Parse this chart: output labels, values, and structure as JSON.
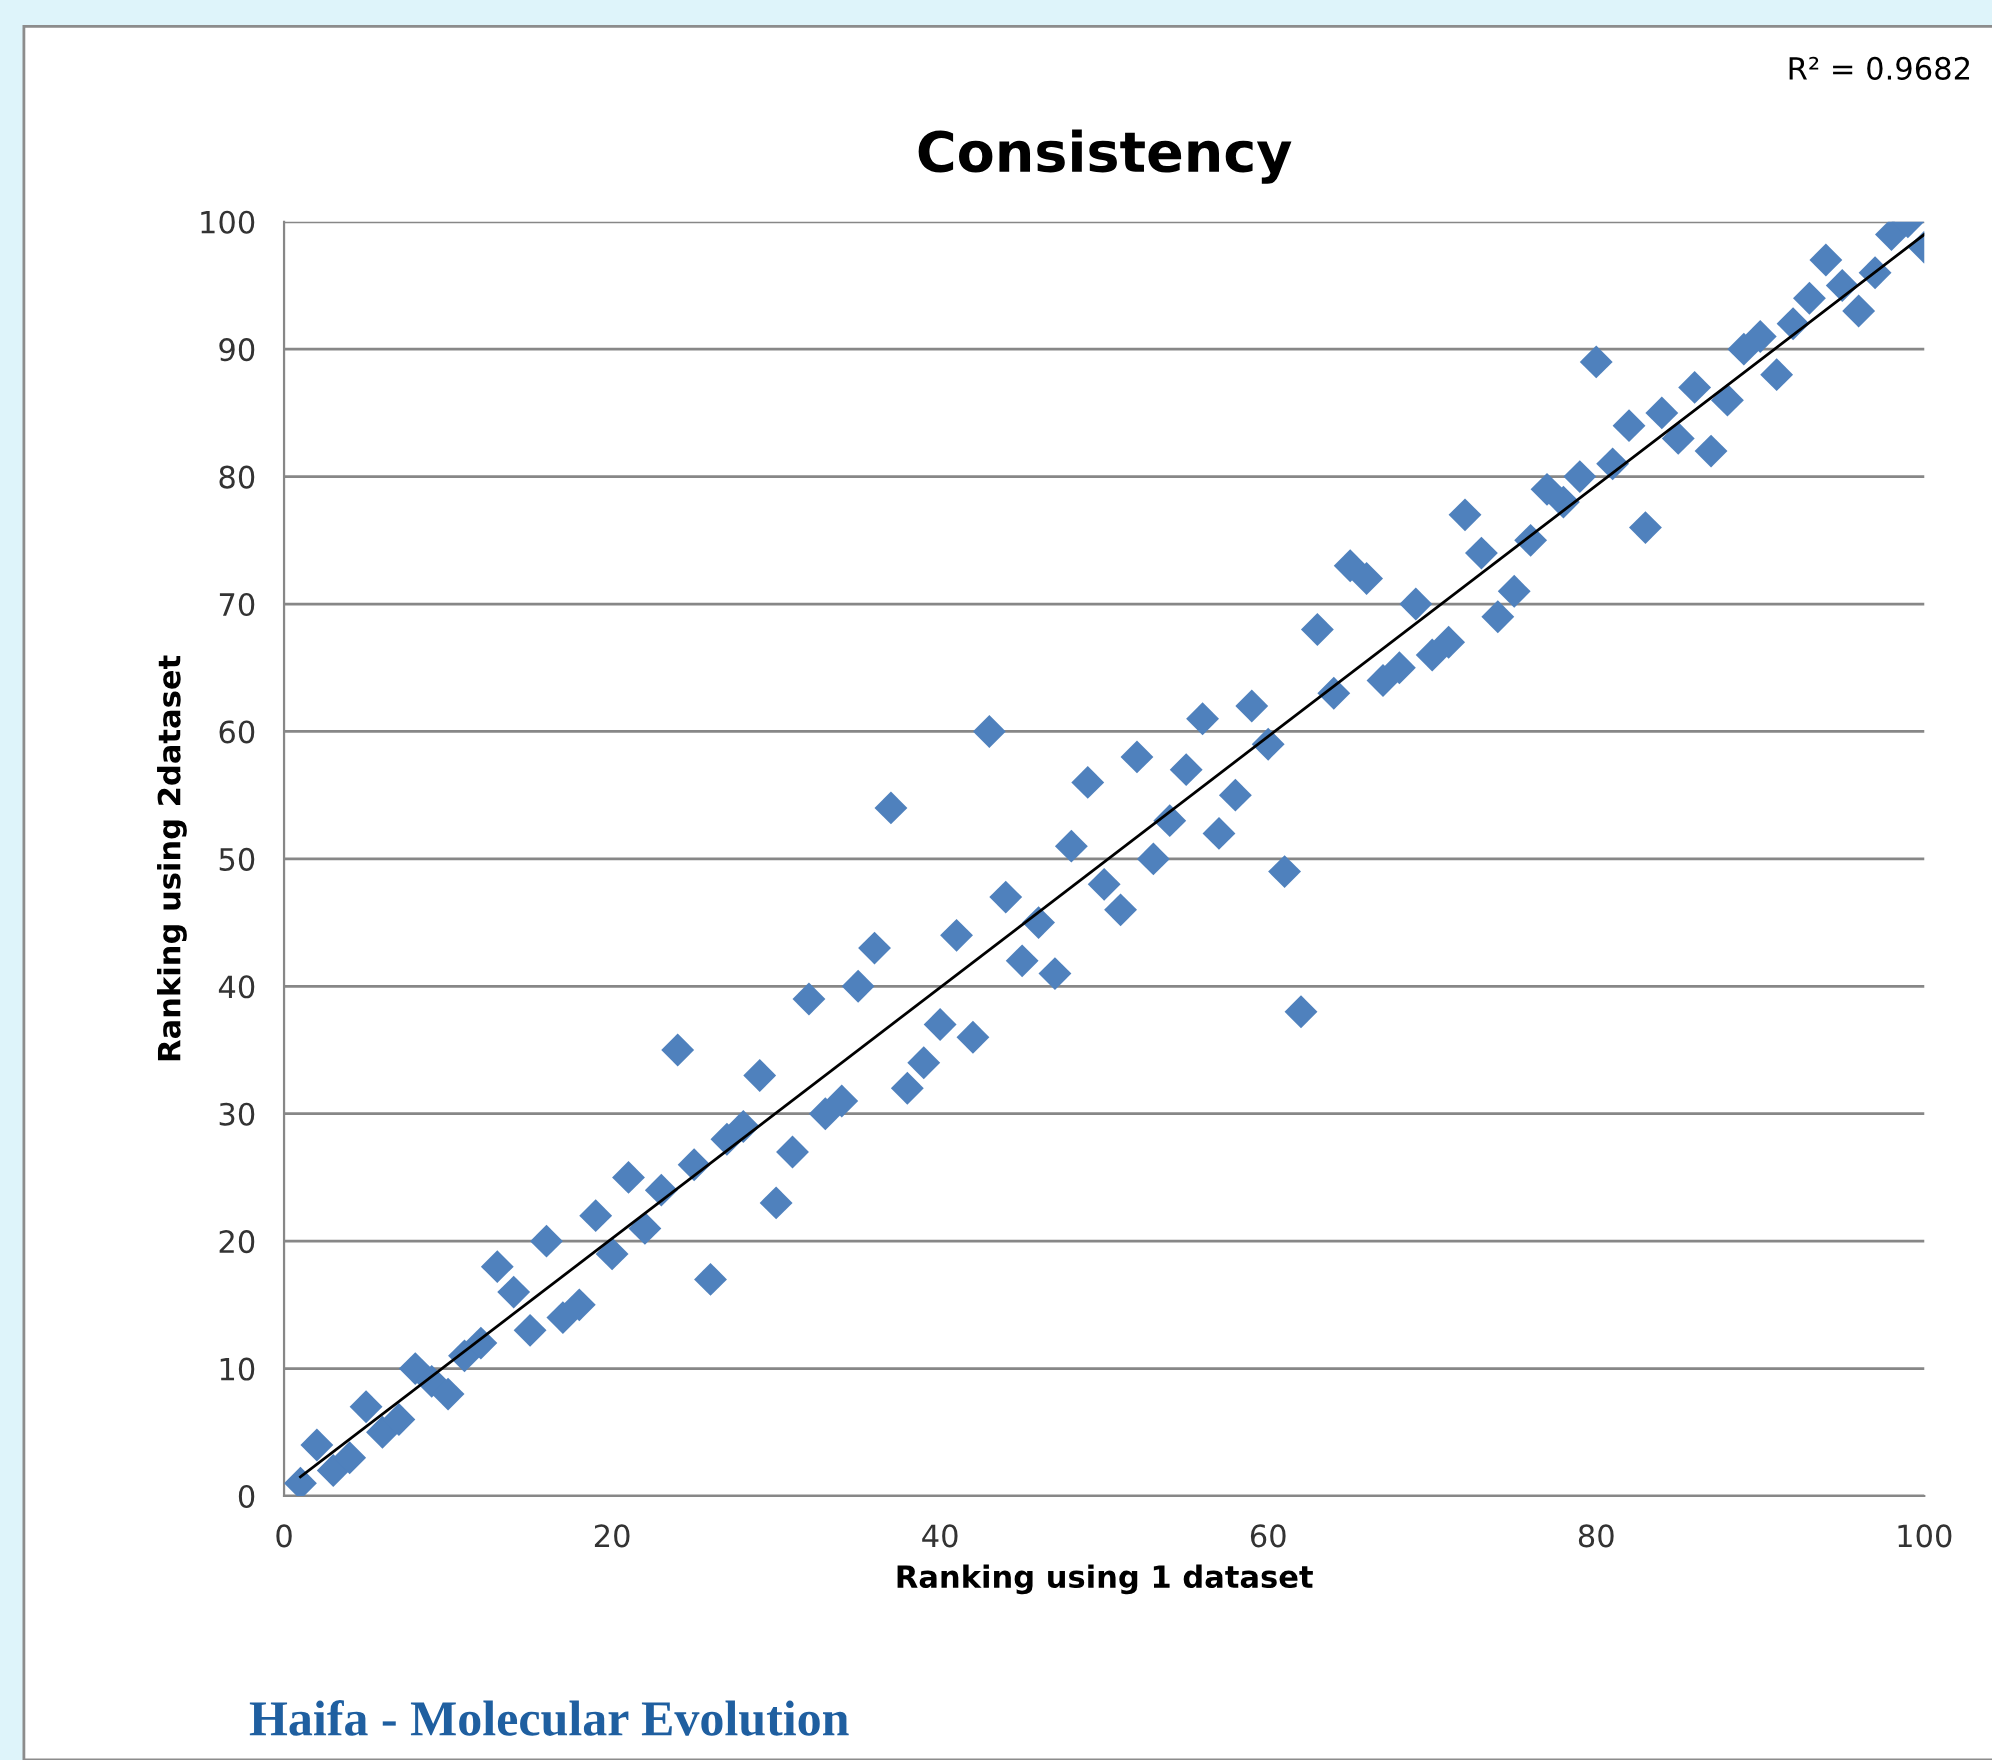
{
  "chart_data": {
    "type": "scatter",
    "title": "Consistency",
    "xlabel": "Ranking using 1 dataset",
    "ylabel": "Ranking using 2dataset",
    "annotations": [
      "R² = 0.9682",
      "Haifa - Molecular Evolution"
    ],
    "xlim": [
      0,
      100
    ],
    "ylim": [
      0,
      100
    ],
    "xticks": [
      0,
      20,
      40,
      60,
      80,
      100
    ],
    "yticks": [
      0,
      10,
      20,
      30,
      40,
      50,
      60,
      70,
      80,
      90,
      100
    ],
    "grid": "y",
    "marker": "diamond",
    "series": [
      {
        "color": "#4f81bd",
        "x": [
          1,
          2,
          3,
          4,
          5,
          6,
          7,
          8,
          9,
          10,
          11,
          12,
          13,
          14,
          15,
          16,
          17,
          18,
          19,
          20,
          21,
          22,
          23,
          24,
          25,
          26,
          27,
          28,
          29,
          30,
          31,
          32,
          33,
          34,
          35,
          36,
          37,
          38,
          39,
          40,
          41,
          42,
          43,
          44,
          45,
          46,
          47,
          48,
          49,
          50,
          51,
          52,
          53,
          54,
          55,
          56,
          57,
          58,
          59,
          60,
          61,
          62,
          63,
          64,
          65,
          66,
          67,
          68,
          69,
          70,
          71,
          72,
          73,
          74,
          75,
          76,
          77,
          78,
          79,
          80,
          81,
          82,
          83,
          84,
          85,
          86,
          87,
          88,
          89,
          90,
          91,
          92,
          93,
          94,
          95,
          96,
          97,
          98,
          99,
          100
        ],
        "values": [
          1,
          4,
          2,
          3,
          7,
          5,
          6,
          10,
          9,
          8,
          11,
          12,
          18,
          16,
          13,
          20,
          14,
          15,
          22,
          19,
          25,
          21,
          24,
          35,
          26,
          17,
          28,
          29,
          33,
          23,
          27,
          39,
          30,
          31,
          40,
          43,
          54,
          32,
          34,
          37,
          44,
          36,
          60,
          47,
          42,
          45,
          41,
          51,
          56,
          48,
          46,
          58,
          50,
          53,
          57,
          61,
          52,
          55,
          62,
          59,
          49,
          38,
          68,
          63,
          73,
          72,
          64,
          65,
          70,
          66,
          67,
          77,
          74,
          69,
          71,
          75,
          79,
          78,
          80,
          89,
          81,
          84,
          76,
          85,
          83,
          87,
          82,
          86,
          90,
          91,
          88,
          92,
          94,
          97,
          95,
          93,
          96,
          99,
          100,
          98
        ]
      },
      {
        "type": "line",
        "color": "#000000",
        "marker": "none",
        "line_style": "solid",
        "x": [
          1,
          100
        ],
        "values": [
          1.5,
          99
        ]
      }
    ]
  }
}
